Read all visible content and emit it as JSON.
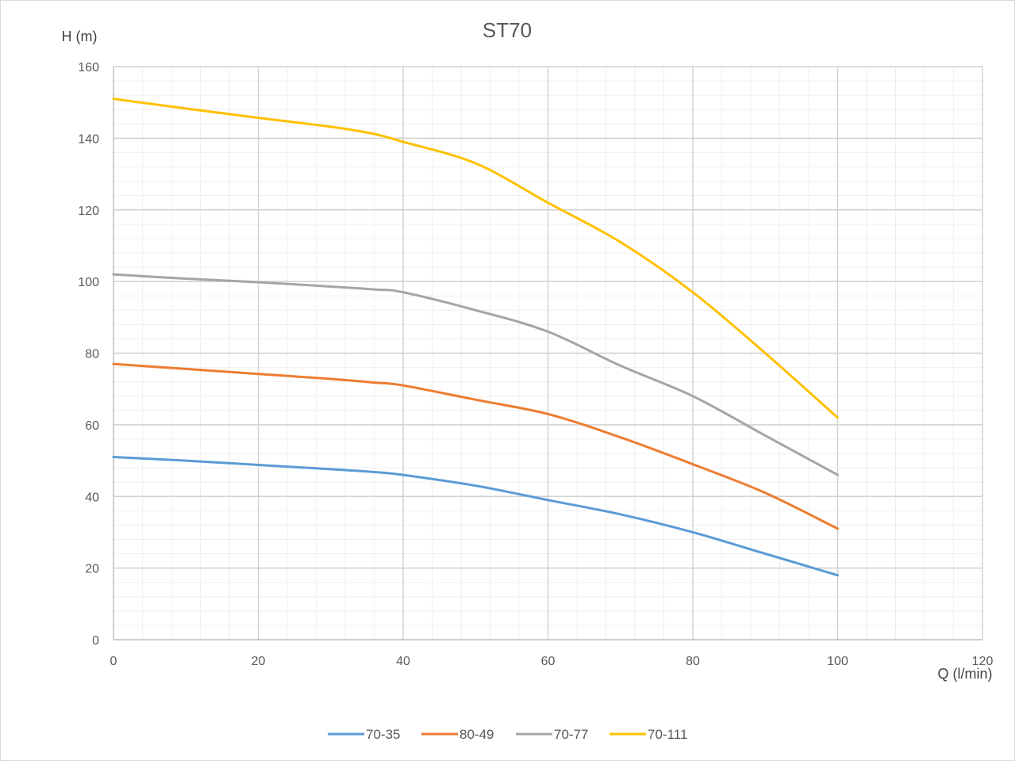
{
  "chart_data": {
    "type": "line",
    "title": "ST70",
    "xlabel": "Q (l/min)",
    "ylabel": "H (m)",
    "xlim": [
      0,
      120
    ],
    "ylim": [
      0,
      160
    ],
    "x_ticks": [
      "0",
      "20",
      "40",
      "60",
      "80",
      "100",
      "120"
    ],
    "y_ticks": [
      "0",
      "20",
      "40",
      "60",
      "80",
      "100",
      "120",
      "140",
      "160"
    ],
    "grid": true,
    "minor_grid": true,
    "legend_position": "bottom",
    "x": [
      0,
      10,
      20,
      30,
      36,
      40,
      50,
      60,
      70,
      80,
      90,
      100
    ],
    "series": [
      {
        "name": "70-35",
        "color": "#5b9bd5",
        "values": [
          51,
          50,
          48.8,
          47.6,
          46.8,
          46,
          43,
          39,
          35,
          30,
          24,
          18
        ]
      },
      {
        "name": "80-49",
        "color": "#ed7d31",
        "values": [
          77,
          75.6,
          74.2,
          72.8,
          71.8,
          71,
          67,
          63,
          56.5,
          49,
          41,
          31
        ]
      },
      {
        "name": "70-77",
        "color": "#a5a5a5",
        "values": [
          102,
          100.8,
          99.8,
          98.6,
          97.8,
          97,
          92,
          86,
          76.5,
          68,
          57,
          46
        ]
      },
      {
        "name": "70-111",
        "color": "#ffc000",
        "values": [
          151,
          148.3,
          145.7,
          143.2,
          141.2,
          139,
          133,
          122,
          111,
          97,
          80,
          62
        ]
      }
    ]
  }
}
